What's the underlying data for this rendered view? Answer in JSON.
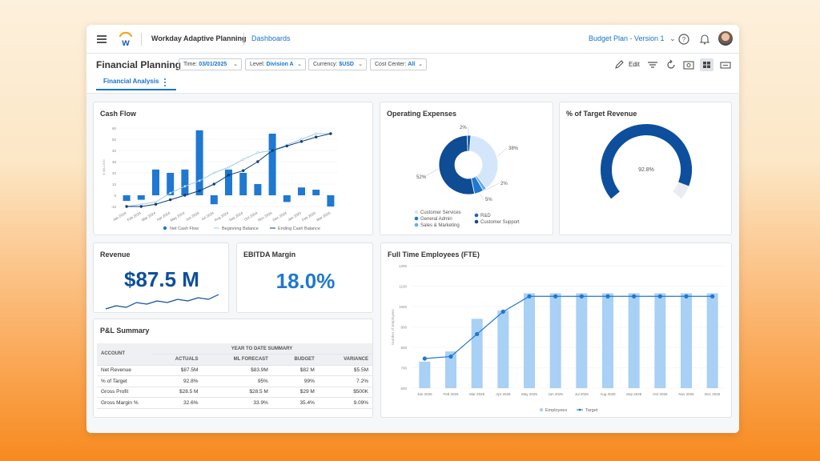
{
  "topbar": {
    "app_title": "Workday Adaptive Planning",
    "nav_link": "Dashboards",
    "plan_selector": "Budget Plan - Version 1"
  },
  "toolbar": {
    "page_title": "Financial Planning",
    "filters": [
      {
        "label": "Time:",
        "value": "03/01/2025"
      },
      {
        "label": "Level:",
        "value": "Division A"
      },
      {
        "label": "Currency:",
        "value": "$USD"
      },
      {
        "label": "Cost Center:",
        "value": "All"
      }
    ],
    "edit_label": "Edit",
    "tab": "Financial Analysis"
  },
  "cash_flow": {
    "title": "Cash Flow",
    "legend": [
      "Net Cash Flow",
      "Beginning Balance",
      "Ending Cash Balance"
    ]
  },
  "operating_expenses": {
    "title": "Operating Expenses",
    "legend": [
      "Customer Services",
      "R&D",
      "General Admin",
      "Customer Support",
      "Sales & Marketing"
    ]
  },
  "target_revenue": {
    "title": "% of Target Revenue",
    "value_label": "92.8%"
  },
  "revenue": {
    "title": "Revenue",
    "value": "$87.5 M"
  },
  "ebitda": {
    "title": "EBITDA Margin",
    "value": "18.0%"
  },
  "pl_summary": {
    "title": "P&L Summary",
    "group_header": "YEAR TO DATE SUMMARY",
    "columns": [
      "ACCOUNT",
      "ACTUALS",
      "ML FORECAST",
      "BUDGET",
      "VARIANCE"
    ],
    "rows": [
      [
        "Net Revenue",
        "$87.5M",
        "$83.9M",
        "$82 M",
        "$5.5M"
      ],
      [
        "% of Target",
        "92.8%",
        "95%",
        "99%",
        "7.2%"
      ],
      [
        "Gross Profit",
        "$28.5 M",
        "$28.5 M",
        "$29 M",
        "$500K"
      ],
      [
        "Gross Margin %",
        "32.6%",
        "33.9%",
        "35.4%",
        "9.09%"
      ]
    ]
  },
  "fte": {
    "title": "Full Time Employees (FTE)",
    "legend": [
      "Employees",
      "Target"
    ]
  },
  "colors": {
    "accent": "#1a73c9",
    "dark_blue": "#0d4f9c",
    "bar_blue": "#1f78d1",
    "light_blue": "#a9d0f5",
    "navy": "#0a3d7a"
  },
  "chart_data": [
    {
      "type": "bar",
      "title": "Cash Flow",
      "categories": [
        "Jan 2024",
        "Feb 2024",
        "Mar 2024",
        "Apr 2024",
        "May 2024",
        "Jun 2024",
        "Jul 2024",
        "Aug 2024",
        "Sep 2024",
        "Oct 2024",
        "Nov 2024",
        "Dec 2024",
        "Jan 2025",
        "Feb 2025",
        "Mar 2025"
      ],
      "yticks": [
        "60",
        "50",
        "40",
        "30",
        "20",
        "10",
        "0",
        "-10"
      ],
      "ylabel": "$ MILLION",
      "ylim": [
        -10,
        60
      ],
      "series": [
        {
          "name": "Net Cash Flow",
          "type": "bar",
          "values": [
            -5,
            -4,
            23,
            20,
            23,
            58,
            -8,
            23,
            20,
            10,
            55,
            -6,
            7,
            5,
            -10
          ]
        },
        {
          "name": "Beginning Balance",
          "type": "line",
          "values": [
            -10,
            -8,
            -6,
            2,
            8,
            13,
            20,
            25,
            32,
            38,
            40,
            45,
            50,
            55,
            55
          ]
        },
        {
          "name": "Ending Cash Balance",
          "type": "line",
          "values": [
            -10,
            -10,
            -8,
            -4,
            0,
            4,
            10,
            18,
            22,
            30,
            40,
            44,
            48,
            52,
            55
          ]
        }
      ]
    },
    {
      "type": "pie",
      "title": "Operating Expenses",
      "labels": [
        "Customer Services",
        "R&D",
        "General Admin",
        "Customer Support",
        "Sales & Marketing"
      ],
      "values": [
        38,
        2,
        5,
        52,
        2
      ],
      "value_labels": [
        "38%",
        "2%",
        "5%",
        "52%",
        "2%"
      ]
    },
    {
      "type": "gauge",
      "title": "% of Target Revenue",
      "value": 92.8
    },
    {
      "type": "line",
      "title": "Revenue",
      "values": [
        10,
        12,
        11,
        14,
        13,
        15,
        14,
        16,
        15,
        17,
        16,
        19
      ]
    },
    {
      "type": "bar",
      "title": "Full Time Employees (FTE)",
      "categories": [
        "Jan 2025",
        "Feb 2025",
        "Mar 2025",
        "Apr 2025",
        "May 2025",
        "Jun 2025",
        "Jul 2025",
        "Aug 2025",
        "Sep 2025",
        "Oct 2025",
        "Nov 2025",
        "Dec 2025"
      ],
      "yticks": [
        "1200",
        "1100",
        "1000",
        "900",
        "800",
        "700",
        "600"
      ],
      "ylabel": "Number of Employees",
      "ylim": [
        600,
        1200
      ],
      "series": [
        {
          "name": "Employees",
          "type": "bar",
          "values": [
            730,
            780,
            940,
            980,
            1065,
            1065,
            1065,
            1065,
            1065,
            1065,
            1065,
            1065
          ]
        },
        {
          "name": "Target",
          "type": "line",
          "values": [
            745,
            755,
            865,
            975,
            1050,
            1050,
            1050,
            1050,
            1050,
            1050,
            1050,
            1050
          ]
        }
      ]
    }
  ]
}
